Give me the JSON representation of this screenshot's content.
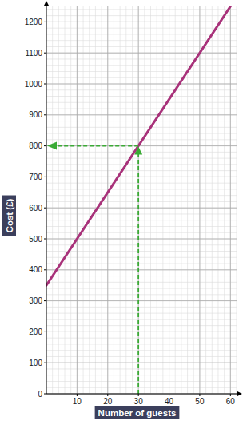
{
  "chart_data": {
    "type": "line",
    "x_label": "Number of guests",
    "y_label": "Cost (£)",
    "x": [
      0,
      60
    ],
    "values": [
      350,
      1250
    ],
    "color": "#a8327a",
    "xlim": [
      0,
      62
    ],
    "ylim": [
      0,
      1250
    ],
    "xticks": [
      10,
      20,
      30,
      40,
      50,
      60
    ],
    "yticks": [
      0,
      100,
      200,
      300,
      400,
      500,
      600,
      700,
      800,
      900,
      1000,
      1100,
      1200
    ],
    "grid": true,
    "guide": {
      "x": 30,
      "y": 800,
      "color": "#3aaa35"
    }
  }
}
